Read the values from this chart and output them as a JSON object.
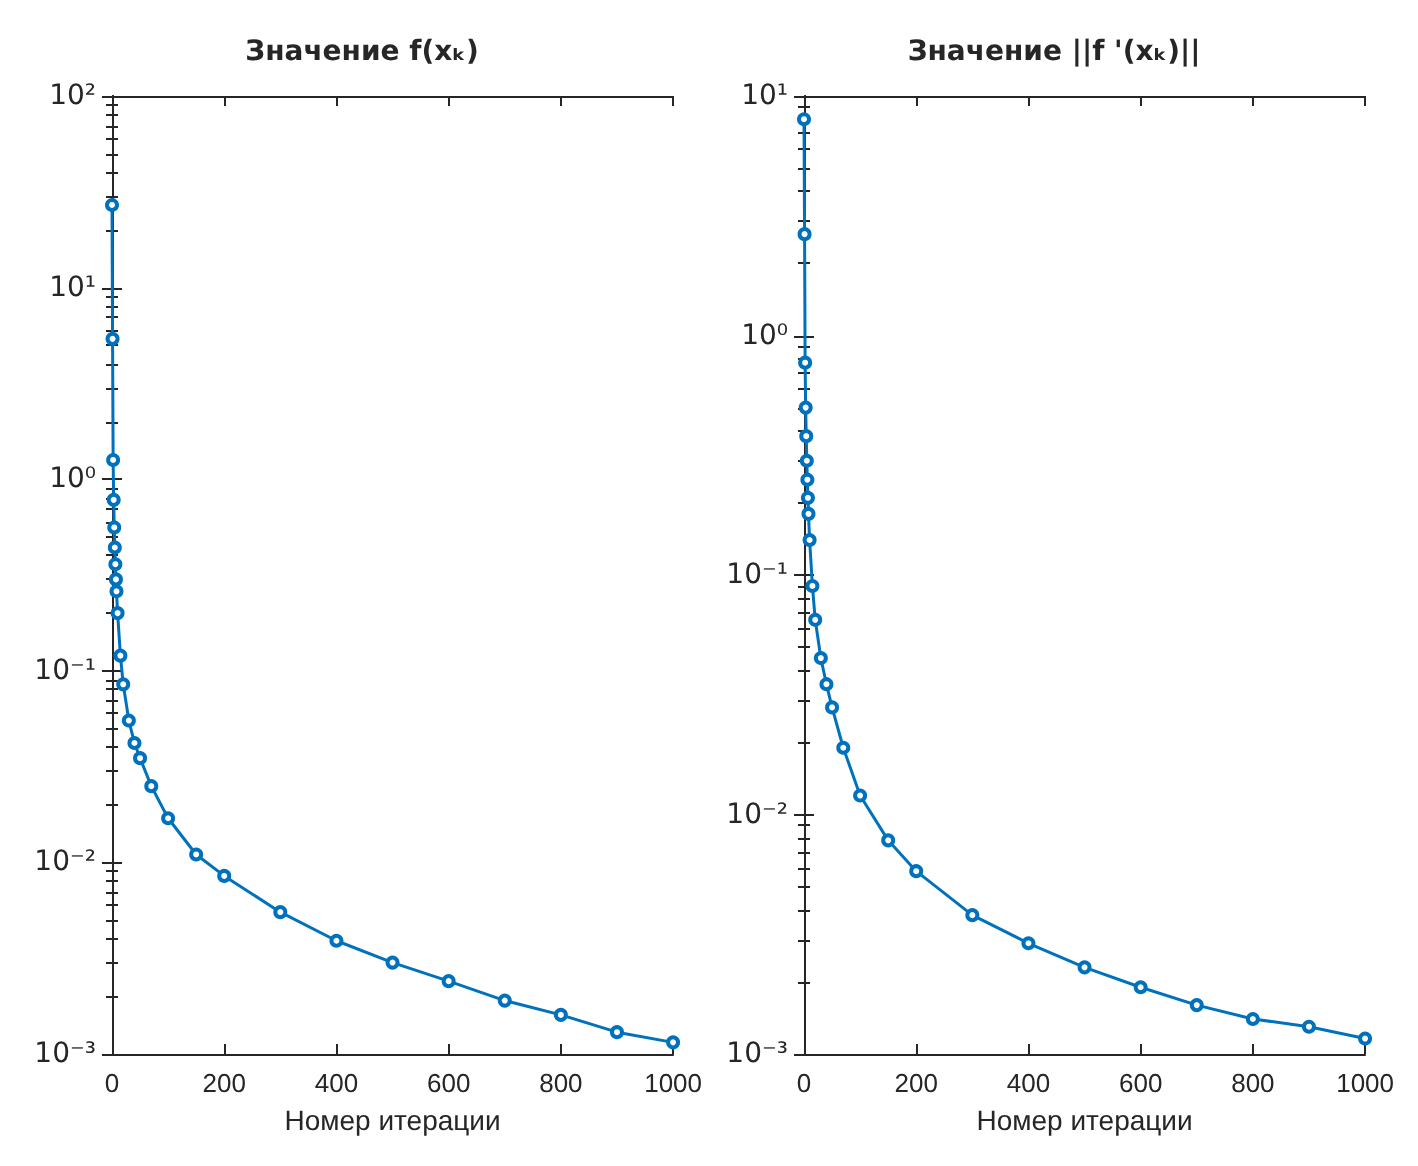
{
  "chart_data": [
    {
      "type": "line",
      "title": "Значение f(xₖ)",
      "xlabel": "Номер итерации",
      "marker": "circle",
      "line_style": "solid",
      "grid": false,
      "log": "y",
      "x": [
        0,
        1,
        2,
        3,
        4,
        5,
        6,
        7,
        8,
        10,
        15,
        20,
        30,
        40,
        50,
        70,
        100,
        150,
        200,
        300,
        400,
        500,
        600,
        700,
        800,
        900,
        1000
      ],
      "series": [
        {
          "color": "#0072bd",
          "values": [
            27,
            5.4,
            1.26,
            0.78,
            0.56,
            0.44,
            0.36,
            0.3,
            0.26,
            0.2,
            0.12,
            0.085,
            0.055,
            0.042,
            0.035,
            0.025,
            0.017,
            0.011,
            0.0085,
            0.0055,
            0.0039,
            0.003,
            0.0024,
            0.0019,
            0.0016,
            0.0013,
            0.00115
          ]
        }
      ],
      "xlim": [
        0,
        1000
      ],
      "xticks": [
        0,
        200,
        400,
        600,
        800,
        1000
      ],
      "ylim": [
        0.001,
        100
      ],
      "yticks": [
        {
          "value": 0.001,
          "label": "10⁻³"
        },
        {
          "value": 0.01,
          "label": "10⁻²"
        },
        {
          "value": 0.1,
          "label": "10⁻¹"
        },
        {
          "value": 1,
          "label": "10⁰"
        },
        {
          "value": 10,
          "label": "10¹"
        },
        {
          "value": 100,
          "label": "10²"
        }
      ]
    },
    {
      "type": "line",
      "title": "Значение ||f '(xₖ)||",
      "xlabel": "Номер итерации",
      "marker": "circle",
      "line_style": "solid",
      "grid": false,
      "log": "y",
      "x": [
        0,
        1,
        2,
        3,
        4,
        5,
        6,
        7,
        8,
        10,
        15,
        20,
        30,
        40,
        50,
        70,
        100,
        150,
        200,
        300,
        400,
        500,
        600,
        700,
        800,
        900,
        1000
      ],
      "series": [
        {
          "color": "#0072bd",
          "values": [
            8,
            2.65,
            0.77,
            0.5,
            0.38,
            0.3,
            0.25,
            0.21,
            0.18,
            0.14,
            0.09,
            0.065,
            0.045,
            0.035,
            0.028,
            0.019,
            0.012,
            0.0078,
            0.0058,
            0.0038,
            0.0029,
            0.0023,
            0.0019,
            0.0016,
            0.0014,
            0.0013,
            0.00116
          ]
        }
      ],
      "xlim": [
        0,
        1000
      ],
      "xticks": [
        0,
        200,
        400,
        600,
        800,
        1000
      ],
      "ylim": [
        0.001,
        10
      ],
      "yticks": [
        {
          "value": 0.001,
          "label": "10⁻³"
        },
        {
          "value": 0.01,
          "label": "10⁻²"
        },
        {
          "value": 0.1,
          "label": "10⁻¹"
        },
        {
          "value": 1,
          "label": "10⁰"
        },
        {
          "value": 10,
          "label": "10¹"
        }
      ]
    }
  ]
}
